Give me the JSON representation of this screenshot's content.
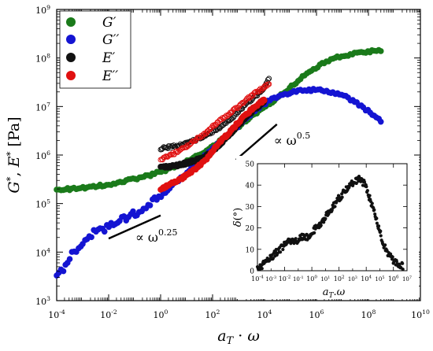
{
  "chart_data": [
    {
      "type": "scatter",
      "xscale": "log",
      "yscale": "log",
      "xlim": [
        0.0001,
        10000000000
      ],
      "ylim": [
        1000,
        1000000000
      ],
      "xlabel": "a_T · ω",
      "ylabel": "G*, E* [Pa]",
      "grid": false,
      "legend_position": "top-left",
      "x_ticks": [
        {
          "label": "10",
          "exp": "-4"
        },
        {
          "label": "10",
          "exp": "-2"
        },
        {
          "label": "10",
          "exp": "0"
        },
        {
          "label": "10",
          "exp": "2"
        },
        {
          "label": "10",
          "exp": "4"
        },
        {
          "label": "10",
          "exp": "6"
        },
        {
          "label": "10",
          "exp": "8"
        },
        {
          "label": "10",
          "exp": "10"
        }
      ],
      "y_ticks": [
        {
          "label": "10",
          "exp": "3"
        },
        {
          "label": "10",
          "exp": "4"
        },
        {
          "label": "10",
          "exp": "5"
        },
        {
          "label": "10",
          "exp": "6"
        },
        {
          "label": "10",
          "exp": "7"
        },
        {
          "label": "10",
          "exp": "8"
        },
        {
          "label": "10",
          "exp": "9"
        }
      ],
      "series": [
        {
          "name": "G′",
          "color": "#1a7a1a",
          "marker": "filled-circle",
          "x": [
            0.0001,
            0.0003,
            0.001,
            0.003,
            0.01,
            0.03,
            0.1,
            0.3,
            1,
            3,
            10,
            30,
            100,
            300,
            1000,
            3000,
            10000,
            30000,
            100000,
            300000,
            1000000,
            3000000,
            10000000,
            30000000,
            100000000,
            300000000
          ],
          "y": [
            195000,
            200000,
            210000,
            225000,
            250000,
            280000,
            320000,
            370000,
            450000,
            560000,
            730000,
            1000000,
            1500000,
            2300000,
            3800000,
            6000000,
            9500000,
            15000000,
            25000000,
            42000000,
            65000000,
            90000000,
            110000000,
            125000000,
            135000000,
            145000000
          ]
        },
        {
          "name": "G′′",
          "color": "#1414d2",
          "marker": "filled-circle",
          "x": [
            0.0001,
            0.0002,
            0.0003,
            0.0005,
            0.001,
            0.002,
            0.005,
            0.01,
            0.03,
            0.1,
            0.3,
            1,
            3,
            10,
            30,
            100,
            300,
            1000,
            3000,
            10000,
            30000,
            100000,
            300000,
            1000000,
            3000000,
            10000000,
            30000000,
            100000000,
            300000000
          ],
          "y": [
            3000,
            5000,
            7500,
            11000,
            16000,
            23000,
            28000,
            34000,
            45000,
            62000,
            90000,
            140000,
            240000,
            420000,
            750000,
            1300000,
            2300000,
            4000000,
            7000000,
            11500000,
            16000000,
            19500000,
            21500000,
            22000000,
            20500000,
            17000000,
            12500000,
            8000000,
            5000000
          ]
        },
        {
          "name": "E′",
          "color": "#111111",
          "marker": "open-circle",
          "x": [
            1,
            2,
            5,
            10,
            20,
            50,
            100,
            200,
            500,
            1000,
            2000,
            5000,
            10000,
            15000
          ],
          "y": [
            1350000,
            1450000,
            1600000,
            1800000,
            2000000,
            2400000,
            3000000,
            3800000,
            5500000,
            8000000,
            11500000,
            17000000,
            24000000,
            38000000
          ]
        },
        {
          "name": "E′′",
          "color": "#e01010",
          "marker": "open-circle",
          "x": [
            1,
            2,
            5,
            10,
            20,
            50,
            100,
            200,
            500,
            1000,
            2000,
            5000,
            10000,
            15000
          ],
          "y": [
            800000,
            950000,
            1200000,
            1500000,
            2000000,
            2700000,
            3800000,
            5200000,
            7500000,
            10000000,
            14000000,
            20000000,
            25000000,
            30000000
          ]
        },
        {
          "name": "E′ (filled)",
          "color": "#111111",
          "marker": "filled-circle",
          "x": [
            1,
            2,
            5,
            10,
            20,
            50,
            100,
            200,
            500,
            1000,
            3000,
            10000
          ],
          "y": [
            550000,
            580000,
            620000,
            680000,
            760000,
            900000,
            1200000,
            1700000,
            2800000,
            4200000,
            7500000,
            13000000
          ]
        },
        {
          "name": "E′′ (filled)",
          "color": "#e01010",
          "marker": "filled-circle",
          "x": [
            1,
            2,
            5,
            10,
            20,
            50,
            100,
            200,
            500,
            1000,
            3000,
            10000
          ],
          "y": [
            200000,
            240000,
            300000,
            380000,
            500000,
            750000,
            1200000,
            1900000,
            3100000,
            4800000,
            8500000,
            14000000
          ]
        }
      ],
      "slope_lines": [
        {
          "label": "∝ ω",
          "exp": "0.25",
          "x1": 0.01,
          "y1": 19000,
          "x2": 1,
          "y2": 57000
        },
        {
          "label": "∝ ω",
          "exp": "0.5",
          "x1": 800,
          "y1": 800000,
          "x2": 30000,
          "y2": 4300000
        }
      ]
    },
    {
      "type": "scatter",
      "inset": true,
      "xscale": "log",
      "yscale": "linear",
      "xlim": [
        0.0001,
        10000000
      ],
      "ylim": [
        0,
        50
      ],
      "xlabel": "a_T.ω",
      "ylabel": "δ(°)",
      "x_ticks": [
        {
          "label": "10",
          "exp": "-4"
        },
        {
          "label": "10",
          "exp": "-2"
        },
        {
          "label": "10",
          "exp": "0"
        },
        {
          "label": "10",
          "exp": "2"
        },
        {
          "label": "10",
          "exp": "4"
        },
        {
          "label": "10",
          "exp": "6"
        }
      ],
      "x_ticks_extra": [
        {
          "label": "10",
          "exp": "-3"
        },
        {
          "label": "10",
          "exp": "-1"
        },
        {
          "label": "10",
          "exp": "1"
        },
        {
          "label": "10",
          "exp": "3"
        },
        {
          "label": "10",
          "exp": "5"
        },
        {
          "label": "10",
          "exp": "7"
        }
      ],
      "y_ticks": [
        "0",
        "10",
        "20",
        "30",
        "40",
        "50"
      ],
      "series": [
        {
          "name": "δ",
          "color": "#111111",
          "marker": "filled-circle",
          "x": [
            0.0001,
            0.0002,
            0.0004,
            0.001,
            0.002,
            0.005,
            0.01,
            0.02,
            0.05,
            0.1,
            0.2,
            0.5,
            1,
            2,
            5,
            10,
            20,
            50,
            100,
            200,
            500,
            1000,
            2000,
            3000,
            5000,
            10000,
            20000,
            50000,
            100000,
            200000,
            500000,
            1000000,
            2000000,
            5000000
          ],
          "y": [
            1,
            2,
            4,
            6,
            8,
            10,
            12,
            14,
            13,
            15,
            16,
            16,
            18,
            20,
            22,
            25,
            28,
            31,
            34,
            36,
            39,
            41,
            42,
            43,
            42,
            39,
            33,
            25,
            18,
            12,
            7,
            5,
            3,
            2
          ]
        }
      ]
    }
  ]
}
